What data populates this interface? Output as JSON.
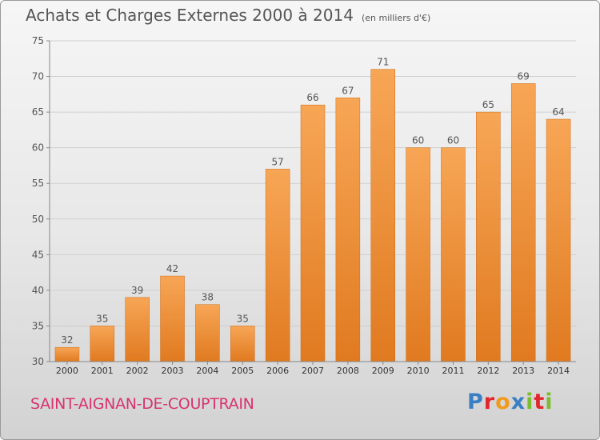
{
  "title": "Achats et Charges Externes 2000 à 2014",
  "subtitle": "(en milliers d'€)",
  "commune": "SAINT-AIGNAN-DE-COUPTRAIN",
  "logo": {
    "letters": [
      "P",
      "r",
      "o",
      "x",
      "i",
      "t",
      "i"
    ],
    "colors": [
      "#3a7fc4",
      "#e3262b",
      "#f39a1e",
      "#3a7fc4",
      "#7cbc2f",
      "#e3262b",
      "#7cbc2f"
    ]
  },
  "colors": {
    "bar_top": "#f7a656",
    "bar_bottom": "#e07a20",
    "grid": "#cfcfcf",
    "axis": "#888888",
    "text": "#555555"
  },
  "chart_data": {
    "type": "bar",
    "title": "Achats et Charges Externes 2000 à 2014",
    "subtitle": "(en milliers d'€)",
    "categories": [
      "2000",
      "2001",
      "2002",
      "2003",
      "2004",
      "2005",
      "2006",
      "2007",
      "2008",
      "2009",
      "2010",
      "2011",
      "2012",
      "2013",
      "2014"
    ],
    "values": [
      32,
      35,
      39,
      42,
      38,
      35,
      57,
      66,
      67,
      71,
      60,
      60,
      65,
      69,
      64
    ],
    "ylim": [
      30,
      75
    ],
    "yticks": [
      30,
      35,
      40,
      45,
      50,
      55,
      60,
      65,
      70,
      75
    ],
    "grid": true,
    "data_labels": true
  }
}
